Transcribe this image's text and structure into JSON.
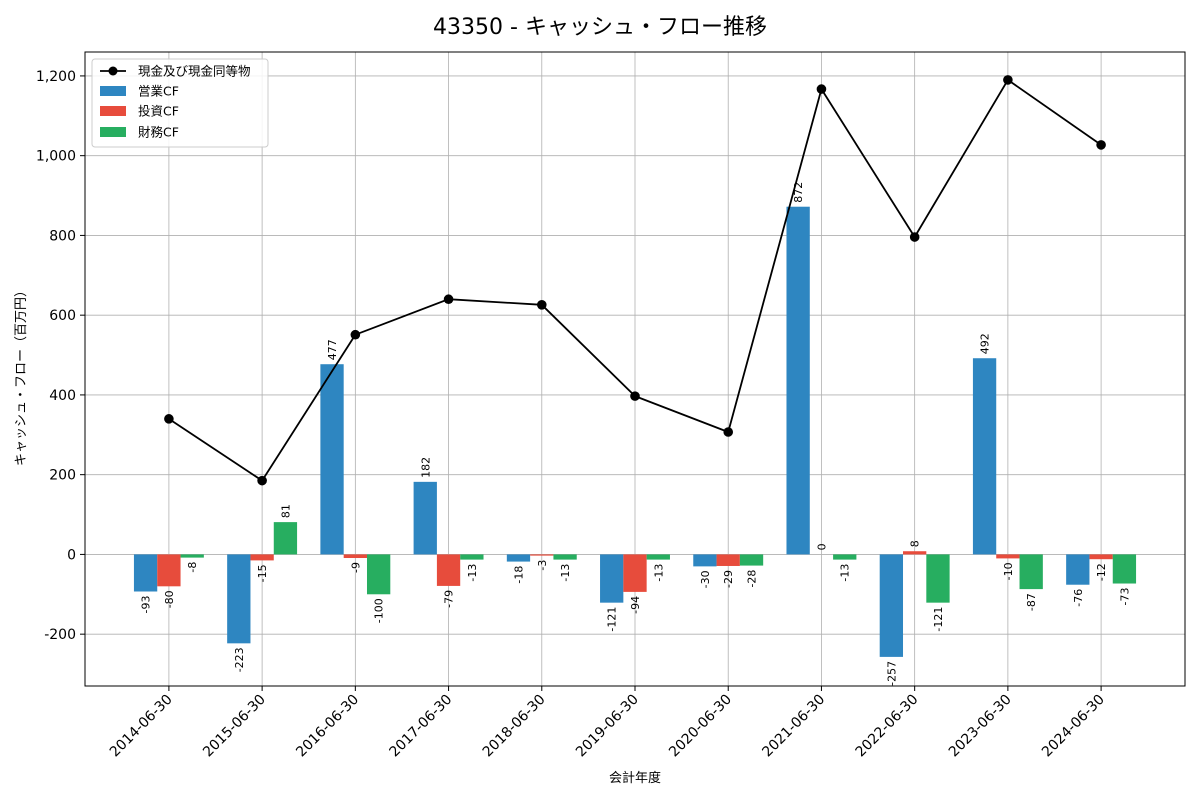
{
  "chart_data": {
    "type": "bar",
    "title": "43350 - キャッシュ・フロー推移",
    "xlabel": "会計年度",
    "ylabel": "キャッシュ・フロー（百万円）",
    "ylim": [
      -330,
      1260
    ],
    "yticks": [
      -200,
      0,
      200,
      400,
      600,
      800,
      1000,
      1200
    ],
    "ytick_labels": [
      "-200",
      "0",
      "200",
      "400",
      "600",
      "800",
      "1,000",
      "1,200"
    ],
    "grid": true,
    "legend_position": "top-left",
    "categories": [
      "2014-06-30",
      "2015-06-30",
      "2016-06-30",
      "2017-06-30",
      "2018-06-30",
      "2019-06-30",
      "2020-06-30",
      "2021-06-30",
      "2022-06-30",
      "2023-06-30",
      "2024-06-30"
    ],
    "series": [
      {
        "name": "営業CF",
        "type": "bar",
        "color": "#2e86c1",
        "values": [
          -93,
          -223,
          477,
          182,
          -18,
          -121,
          -30,
          872,
          -257,
          492,
          -76
        ]
      },
      {
        "name": "投資CF",
        "type": "bar",
        "color": "#e74c3c",
        "values": [
          -80,
          -15,
          -9,
          -79,
          -3,
          -94,
          -29,
          0,
          8,
          -10,
          -12
        ]
      },
      {
        "name": "財務CF",
        "type": "bar",
        "color": "#27ae60",
        "values": [
          -8,
          81,
          -100,
          -13,
          -13,
          -13,
          -28,
          -13,
          -121,
          -87,
          -73
        ]
      }
    ],
    "line_series": {
      "name": "現金及び現金同等物",
      "type": "line",
      "color": "#000000",
      "values": [
        340,
        185,
        551,
        640,
        626,
        397,
        307,
        1167,
        796,
        1190,
        1027
      ]
    }
  }
}
